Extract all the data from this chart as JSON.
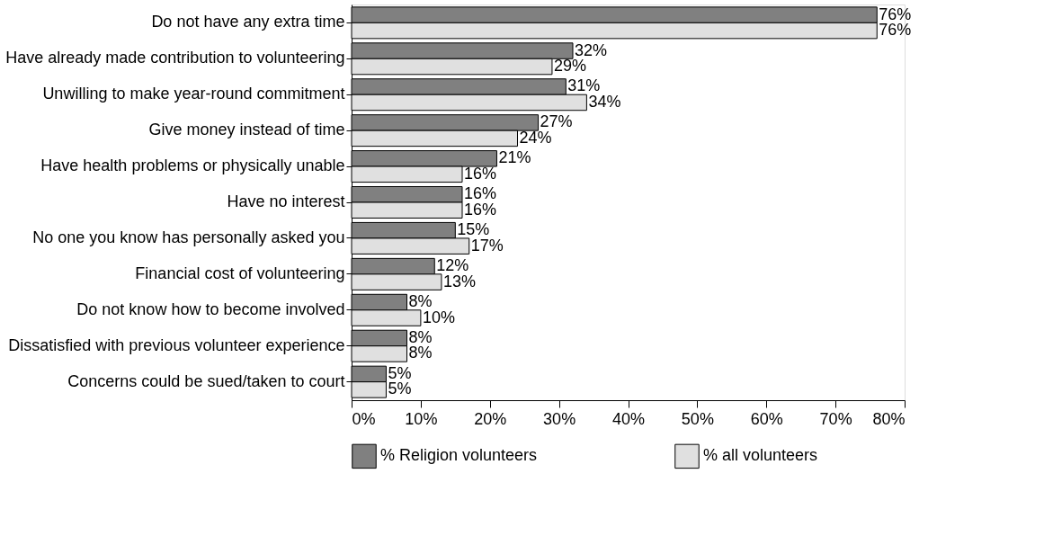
{
  "chart_data": {
    "type": "bar",
    "orientation": "horizontal",
    "categories": [
      "Do not have any extra time",
      "Have already made contribution to volunteering",
      "Unwilling to make year-round commitment",
      "Give money instead of time",
      "Have health problems or physically unable",
      "Have no interest",
      "No one you know has personally asked you",
      "Financial cost of volunteering",
      "Do not know how to become involved",
      "Dissatisfied with previous volunteer experience",
      "Concerns could be sued/taken to court"
    ],
    "series": [
      {
        "name": "% Religion volunteers",
        "color": "#808080",
        "values": [
          76,
          32,
          31,
          27,
          21,
          16,
          15,
          12,
          8,
          8,
          5
        ],
        "value_labels": [
          "76%",
          "32%",
          "31%",
          "27%",
          "21%",
          "16%",
          "15%",
          "12%",
          "8%",
          "8%",
          "5%"
        ]
      },
      {
        "name": "% all volunteers",
        "color": "#e0e0e0",
        "values": [
          76,
          29,
          34,
          24,
          16,
          16,
          17,
          13,
          10,
          8,
          5
        ],
        "value_labels": [
          "76%",
          "29%",
          "34%",
          "24%",
          "16%",
          "16%",
          "17%",
          "13%",
          "10%",
          "8%",
          "5%"
        ]
      }
    ],
    "xlim": [
      0,
      80
    ],
    "xticks": [
      {
        "value": 0,
        "label": "0%"
      },
      {
        "value": 10,
        "label": "10%"
      },
      {
        "value": 20,
        "label": "20%"
      },
      {
        "value": 30,
        "label": "30%"
      },
      {
        "value": 40,
        "label": "40%"
      },
      {
        "value": 50,
        "label": "50%"
      },
      {
        "value": 60,
        "label": "60%"
      },
      {
        "value": 70,
        "label": "70%"
      },
      {
        "value": 80,
        "label": "80%"
      }
    ],
    "grid": false,
    "legend": "bottom"
  }
}
